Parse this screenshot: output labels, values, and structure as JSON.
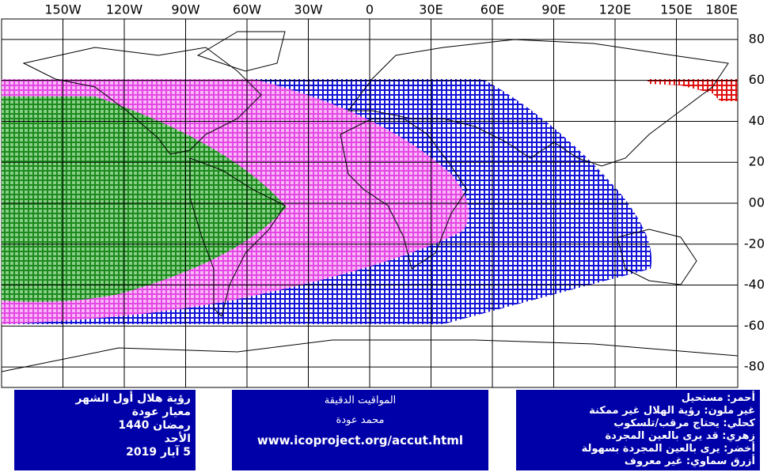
{
  "map": {
    "longitude_labels": [
      "150W",
      "120W",
      "90W",
      "60W",
      "30W",
      "0",
      "30E",
      "60E",
      "90E",
      "120E",
      "150E",
      "180E"
    ],
    "latitude_labels": [
      "80",
      "60",
      "40",
      "20",
      "00",
      "-20",
      "-40",
      "-60",
      "-80"
    ]
  },
  "left_box": {
    "lines": [
      "رؤية هلال أول الشهر",
      "معيار عودة",
      "رمضان 1440",
      "الأحد",
      "5 آيار 2019"
    ]
  },
  "center_box": {
    "lines": [
      "المواقيت الدقيقة",
      "محمد عودة",
      "www.icoproject.org/accut.html"
    ]
  },
  "right_box": {
    "lines": [
      "أحمر: مستحيل",
      "غير ملون: رؤية الهلال غير ممكنة",
      "كحلي: يحتاج مرقب/تلسكوب",
      "زهري: قد يرى بالعين المجردة",
      "أخضر: يرى بالعين المجردة بسهولة",
      "أزرق سماوي: غير معروف"
    ]
  }
}
